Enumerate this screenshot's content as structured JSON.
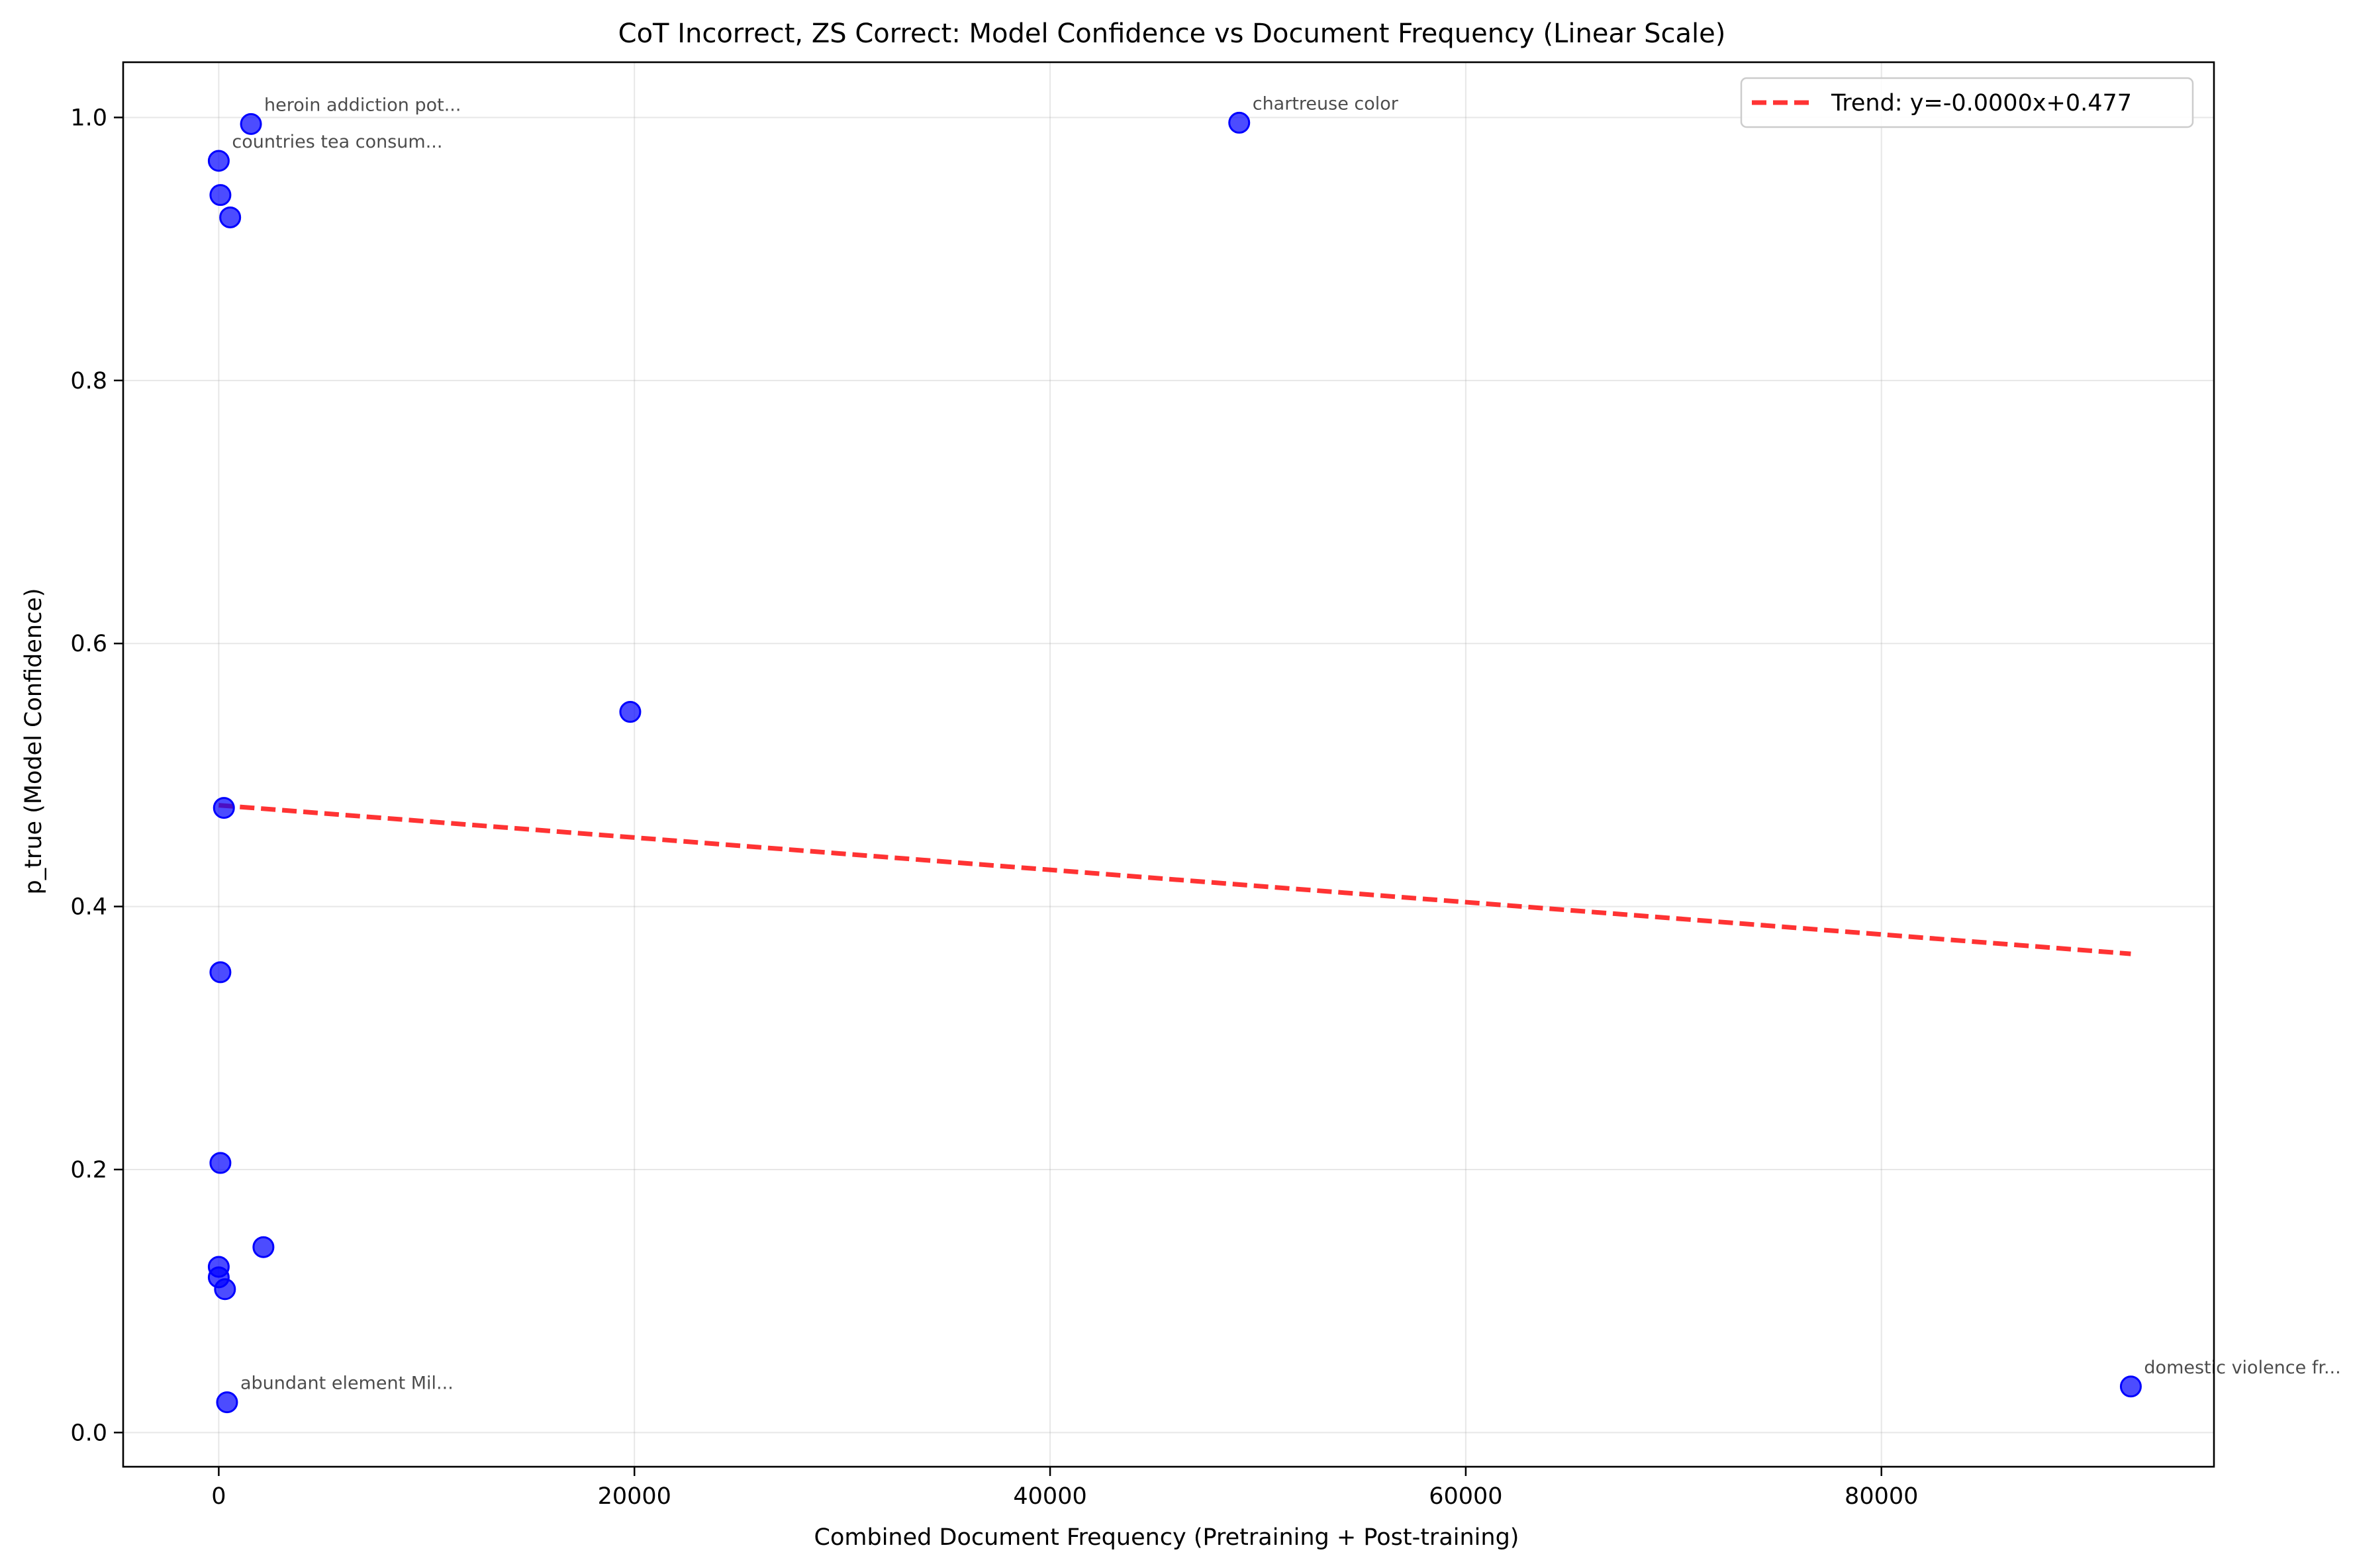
{
  "chart_data": {
    "type": "scatter",
    "title": "CoT Incorrect, ZS Correct: Model Confidence vs Document Frequency (Linear Scale)",
    "xlabel": "Combined Document Frequency (Pretraining + Post-training)",
    "ylabel": "p_true (Model Confidence)",
    "xlim": [
      -4600,
      96000
    ],
    "ylim": [
      -0.026,
      1.042
    ],
    "xticks": [
      0,
      20000,
      40000,
      60000,
      80000
    ],
    "yticks": [
      0.0,
      0.2,
      0.4,
      0.6,
      0.8,
      1.0
    ],
    "xtick_labels": [
      "0",
      "20000",
      "40000",
      "60000",
      "80000"
    ],
    "ytick_labels": [
      "0.0",
      "0.2",
      "0.4",
      "0.6",
      "0.8",
      "1.0"
    ],
    "grid": true,
    "legend_position": "top-right",
    "colors": {
      "points": "#0000ff",
      "trend": "#ff0000"
    },
    "series": [
      {
        "points": [
          {
            "x": 1550,
            "y": 0.995,
            "label": "heroin addiction pot..."
          },
          {
            "x": 49100,
            "y": 0.996,
            "label": "chartreuse color"
          },
          {
            "x": 0,
            "y": 0.967,
            "label": "countries tea consum..."
          },
          {
            "x": 80,
            "y": 0.941
          },
          {
            "x": 550,
            "y": 0.924
          },
          {
            "x": 19800,
            "y": 0.548
          },
          {
            "x": 250,
            "y": 0.475
          },
          {
            "x": 80,
            "y": 0.35
          },
          {
            "x": 80,
            "y": 0.205
          },
          {
            "x": 2150,
            "y": 0.141
          },
          {
            "x": 0,
            "y": 0.126
          },
          {
            "x": 0,
            "y": 0.118
          },
          {
            "x": 300,
            "y": 0.109
          },
          {
            "x": 400,
            "y": 0.023,
            "label": "abundant element Mil..."
          },
          {
            "x": 92000,
            "y": 0.035,
            "label": "domestic violence fr..."
          }
        ]
      }
    ],
    "trend": {
      "name": "Trend: y=-0.0000x+0.477",
      "x": [
        0,
        92000
      ],
      "y": [
        0.477,
        0.364
      ]
    }
  }
}
